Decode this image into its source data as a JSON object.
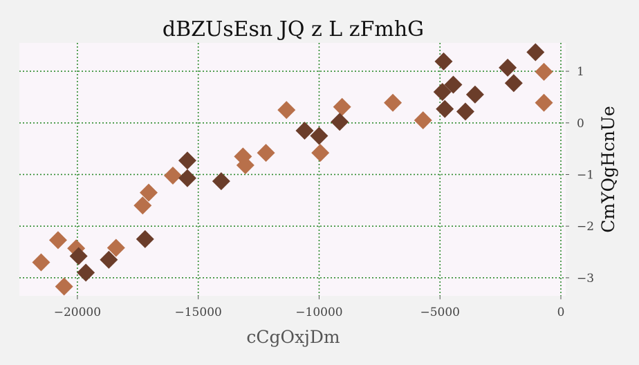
{
  "chart_data": {
    "type": "scatter",
    "title": "dBZUsEsn JQ z L  zFmhG",
    "xlabel": "cCgOxjDm",
    "ylabel": "CmYQgHcnUe",
    "xlim": [
      -22400,
      200
    ],
    "ylim": [
      -3.35,
      1.55
    ],
    "x_ticks": [
      -20000,
      -15000,
      -10000,
      -5000,
      0
    ],
    "x_tick_labels": [
      "−20000",
      "−15000",
      "−10000",
      "−5000",
      "0"
    ],
    "y_ticks": [
      1,
      0,
      -1,
      -2,
      -3
    ],
    "y_tick_labels": [
      "1",
      "0",
      "−1",
      "−2",
      "−3"
    ],
    "grid": true,
    "y_axis_position": "right",
    "marker": "diamond",
    "colors": {
      "background": "#f2f2f2",
      "plot_background": "#faf5fa",
      "grid": "#2e8b2e",
      "light_series": "#b8704a",
      "dark_series": "#6b3d2a"
    },
    "series": [
      {
        "color": "#b8704a",
        "points": [
          {
            "x": -21500,
            "y": -2.7
          },
          {
            "x": -20800,
            "y": -2.27
          },
          {
            "x": -20550,
            "y": -3.17
          },
          {
            "x": -20050,
            "y": -2.43
          },
          {
            "x": -18400,
            "y": -2.42
          },
          {
            "x": -17300,
            "y": -1.6
          },
          {
            "x": -17050,
            "y": -1.35
          },
          {
            "x": -16050,
            "y": -1.02
          },
          {
            "x": -13150,
            "y": -0.65
          },
          {
            "x": -13050,
            "y": -0.82
          },
          {
            "x": -12200,
            "y": -0.58
          },
          {
            "x": -11350,
            "y": 0.25
          },
          {
            "x": -9950,
            "y": -0.58
          },
          {
            "x": -9050,
            "y": 0.31
          },
          {
            "x": -6950,
            "y": 0.39
          },
          {
            "x": -5700,
            "y": 0.05
          },
          {
            "x": -700,
            "y": 0.99
          },
          {
            "x": -700,
            "y": 0.39
          }
        ]
      },
      {
        "color": "#6b3d2a",
        "points": [
          {
            "x": -19950,
            "y": -2.58
          },
          {
            "x": -19650,
            "y": -2.9
          },
          {
            "x": -18700,
            "y": -2.65
          },
          {
            "x": -17200,
            "y": -2.25
          },
          {
            "x": -15450,
            "y": -0.73
          },
          {
            "x": -15450,
            "y": -1.07
          },
          {
            "x": -14050,
            "y": -1.13
          },
          {
            "x": -10600,
            "y": -0.15
          },
          {
            "x": -10000,
            "y": -0.25
          },
          {
            "x": -9150,
            "y": 0.02
          },
          {
            "x": -4850,
            "y": 1.19
          },
          {
            "x": -4900,
            "y": 0.6
          },
          {
            "x": -4800,
            "y": 0.27
          },
          {
            "x": -4450,
            "y": 0.74
          },
          {
            "x": -3950,
            "y": 0.22
          },
          {
            "x": -3550,
            "y": 0.55
          },
          {
            "x": -2200,
            "y": 1.07
          },
          {
            "x": -1950,
            "y": 0.77
          },
          {
            "x": -1050,
            "y": 1.37
          }
        ]
      }
    ]
  }
}
